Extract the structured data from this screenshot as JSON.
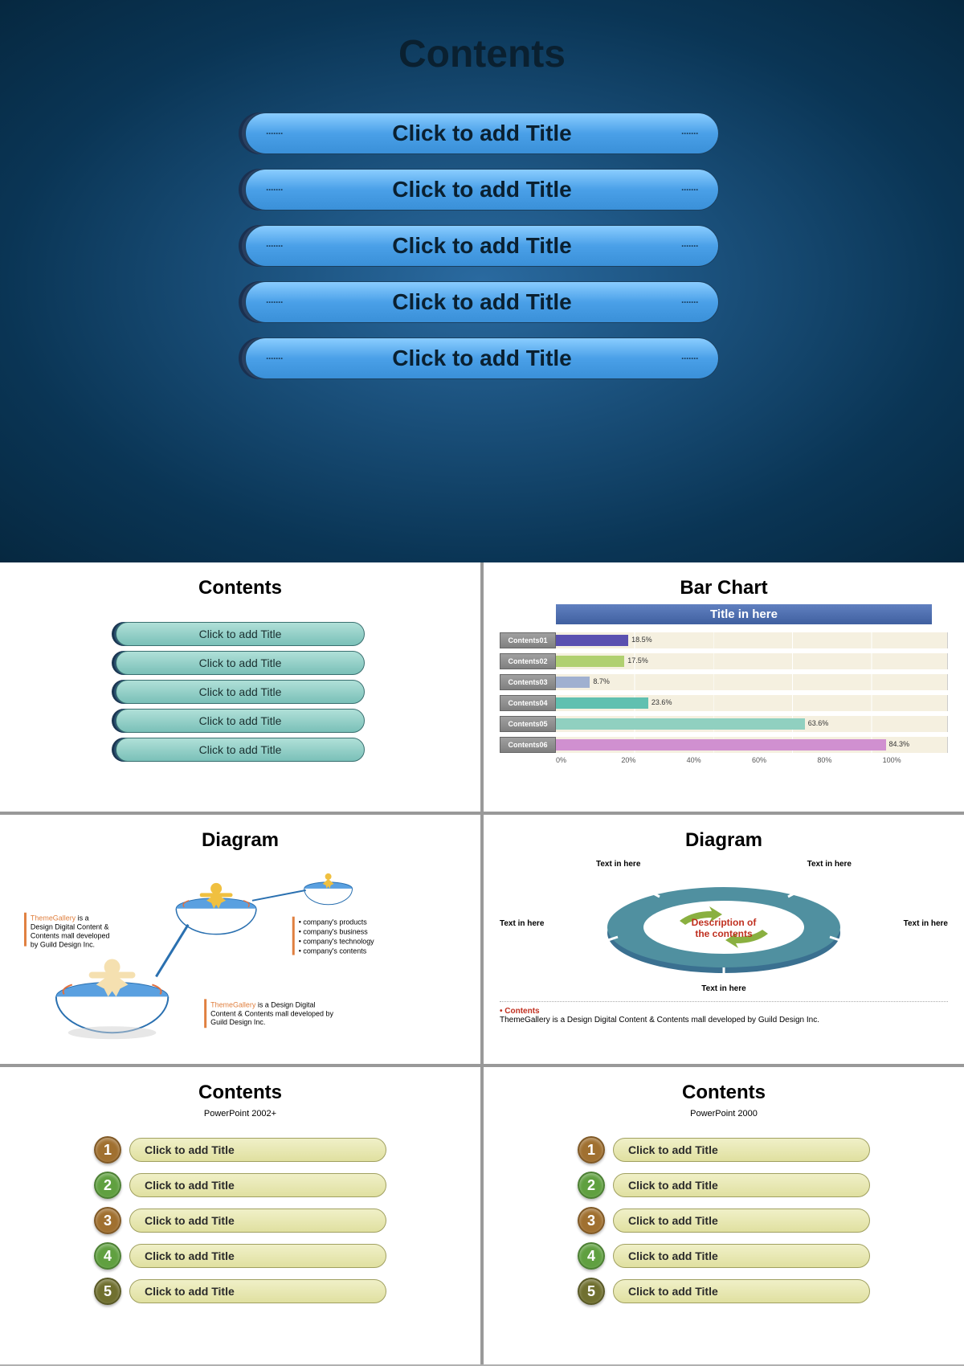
{
  "main": {
    "title": "Contents",
    "item_label": "Click to add Title",
    "pill_gradient": [
      "#8acdff",
      "#4aa0e8",
      "#3a90d8"
    ],
    "bg_gradient": [
      "#2a6aa0",
      "#0a3555",
      "#062840"
    ]
  },
  "mini_contents": {
    "title": "Contents",
    "items": [
      "Click to add Title",
      "Click to add Title",
      "Click to add Title",
      "Click to add Title",
      "Click to add Title"
    ],
    "pill_color": [
      "#b0e0d8",
      "#7ac0b8"
    ]
  },
  "barchart": {
    "title": "Bar Chart",
    "header": "Title in here",
    "type": "bar",
    "xlim": [
      0,
      100
    ],
    "xtick_step": 20,
    "axis_labels": [
      "0%",
      "20%",
      "40%",
      "60%",
      "80%",
      "100%"
    ],
    "rows": [
      {
        "label": "Contents01",
        "value": 18.5,
        "color": "#5a50b0"
      },
      {
        "label": "Contents02",
        "value": 17.5,
        "color": "#b0d070"
      },
      {
        "label": "Contents03",
        "value": 8.7,
        "color": "#a0b0d0"
      },
      {
        "label": "Contents04",
        "value": 23.6,
        "color": "#60c0b0"
      },
      {
        "label": "Contents05",
        "value": 63.6,
        "color": "#90d0c0"
      },
      {
        "label": "Contents06",
        "value": 84.3,
        "color": "#d090d0"
      }
    ],
    "grid_bg": "#f5f0e0"
  },
  "diagram1": {
    "title": "Diagram",
    "text_left_h": "ThemeGallery",
    "text_left": " is a Design Digital Content & Contents mall developed by Guild Design Inc.",
    "bullets": [
      "company's products",
      "company's business",
      "company's technology",
      "company's contents"
    ],
    "text_bottom_h": "ThemeGallery",
    "text_bottom": " is a Design Digital Content & Contents mall developed by Guild Design Inc.",
    "bowl_fill": "#5aa0e0",
    "bowl_stroke": "#2a70b0",
    "figure_color": "#f0c060",
    "arrow_color": "#e07040"
  },
  "diagram2": {
    "title": "Diagram",
    "labels": [
      "Text in here",
      "Text in here",
      "Text in here",
      "Text in here",
      "Text in here"
    ],
    "center_text": "Description of the contents",
    "ring_colors": [
      "#3a7090",
      "#5090a0",
      "#5a9aa8"
    ],
    "arrow_color": "#8ab040",
    "footer_h": "• Contents",
    "footer": "ThemeGallery  is a Design Digital Content & Contents mall developed by Guild Design Inc."
  },
  "numbered_a": {
    "title": "Contents",
    "subtitle": "PowerPoint 2002+",
    "items": [
      {
        "n": "1",
        "label": "Click to add Title",
        "color": "#a07030"
      },
      {
        "n": "2",
        "label": "Click to add Title",
        "color": "#60a040"
      },
      {
        "n": "3",
        "label": "Click to add Title",
        "color": "#a07030"
      },
      {
        "n": "4",
        "label": "Click to add Title",
        "color": "#60a040"
      },
      {
        "n": "5",
        "label": "Click to add Title",
        "color": "#707030"
      }
    ]
  },
  "numbered_b": {
    "title": "Contents",
    "subtitle": "PowerPoint 2000",
    "items": [
      {
        "n": "1",
        "label": "Click to add Title",
        "color": "#a07030"
      },
      {
        "n": "2",
        "label": "Click to add Title",
        "color": "#60a040"
      },
      {
        "n": "3",
        "label": "Click to add Title",
        "color": "#a07030"
      },
      {
        "n": "4",
        "label": "Click to add Title",
        "color": "#60a040"
      },
      {
        "n": "5",
        "label": "Click to add Title",
        "color": "#707030"
      }
    ]
  }
}
